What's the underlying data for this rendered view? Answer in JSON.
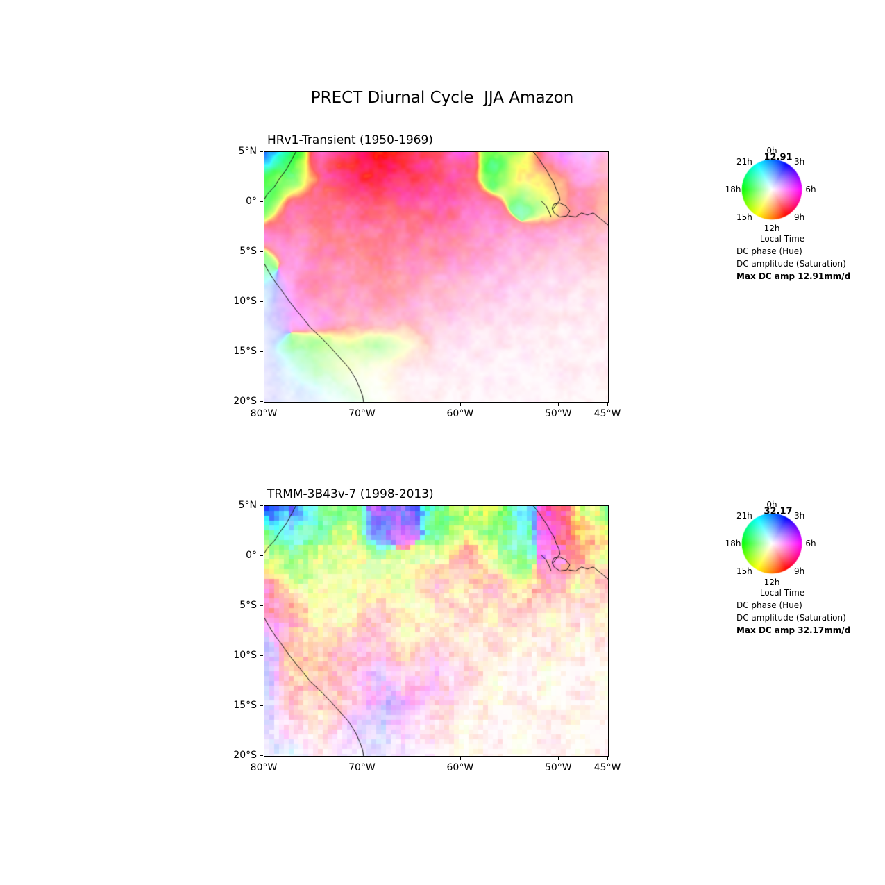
{
  "figure": {
    "title": "PRECT Diurnal Cycle  JJA Amazon"
  },
  "panels": [
    {
      "title": "HRv1-Transient (1950-1969)",
      "max_amp": "12.91",
      "legend": {
        "hours": [
          "0h",
          "3h",
          "6h",
          "9h",
          "12h",
          "15h",
          "18h",
          "21h"
        ],
        "local_time": "Local Time",
        "phase": "DC phase (Hue)",
        "amplitude": "DC amplitude (Saturation)",
        "max": "Max DC amp 12.91mm/d"
      }
    },
    {
      "title": "TRMM-3B43v-7 (1998-2013)",
      "max_amp": "32.17",
      "legend": {
        "hours": [
          "0h",
          "3h",
          "6h",
          "9h",
          "12h",
          "15h",
          "18h",
          "21h"
        ],
        "local_time": "Local Time",
        "phase": "DC phase (Hue)",
        "amplitude": "DC amplitude (Saturation)",
        "max": "Max DC amp 32.17mm/d"
      }
    }
  ],
  "chart_data": [
    {
      "type": "heatmap",
      "title": "HRv1-Transient (1950-1969)",
      "xlabel": "",
      "ylabel": "",
      "x_ticks": [
        {
          "label": "80°W",
          "lon": -80
        },
        {
          "label": "70°W",
          "lon": -70
        },
        {
          "label": "60°W",
          "lon": -60
        },
        {
          "label": "50°W",
          "lon": -50
        },
        {
          "label": "45°W",
          "lon": -45
        }
      ],
      "y_ticks": [
        {
          "label": "5°N",
          "lat": 5
        },
        {
          "label": "0°",
          "lat": 0
        },
        {
          "label": "5°S",
          "lat": -5
        },
        {
          "label": "10°S",
          "lat": -10
        },
        {
          "label": "15°S",
          "lat": -15
        },
        {
          "label": "20°S",
          "lat": -20
        }
      ],
      "extent": {
        "lon_min": -80,
        "lon_max": -45,
        "lat_min": -20,
        "lat_max": 5
      },
      "encoding": {
        "hue": "DC phase (local time)",
        "saturation": "DC amplitude",
        "hour_to_hue_deg": "(210 + 15*hour) mod 360"
      },
      "max_dc_amp_mm_per_day": 12.91,
      "field": {
        "hue_deg": [
          [
            225,
            130,
            335,
            350,
            355,
            350,
            340,
            320,
            120,
            70,
            310,
            280,
            330
          ],
          [
            120,
            110,
            345,
            350,
            352,
            348,
            340,
            335,
            130,
            60,
            30,
            320,
            340
          ],
          [
            115,
            340,
            345,
            348,
            350,
            345,
            340,
            335,
            330,
            140,
            60,
            340,
            20
          ],
          [
            320,
            340,
            345,
            347,
            350,
            345,
            340,
            335,
            330,
            325,
            330,
            335,
            340
          ],
          [
            120,
            315,
            340,
            345,
            345,
            342,
            338,
            332,
            328,
            325,
            330,
            335,
            340
          ],
          [
            200,
            310,
            335,
            340,
            340,
            338,
            333,
            330,
            325,
            325,
            330,
            335,
            340
          ],
          [
            230,
            300,
            315,
            335,
            338,
            335,
            330,
            328,
            325,
            325,
            330,
            335,
            340
          ],
          [
            230,
            110,
            100,
            75,
            110,
            70,
            330,
            328,
            325,
            325,
            330,
            335,
            340
          ],
          [
            250,
            190,
            120,
            80,
            65,
            340,
            335,
            330,
            325,
            325,
            330,
            335,
            340
          ],
          [
            240,
            230,
            200,
            140,
            80,
            350,
            340,
            335,
            330,
            330,
            335,
            340,
            345
          ]
        ],
        "amp_norm": [
          [
            0.9,
            0.8,
            0.6,
            0.85,
            0.9,
            0.8,
            0.7,
            0.6,
            0.7,
            0.6,
            0.5,
            0.3,
            0.25
          ],
          [
            0.7,
            0.5,
            0.6,
            0.8,
            0.85,
            0.75,
            0.7,
            0.65,
            0.6,
            0.5,
            0.5,
            0.4,
            0.3
          ],
          [
            0.6,
            0.5,
            0.55,
            0.6,
            0.6,
            0.6,
            0.6,
            0.55,
            0.5,
            0.4,
            0.45,
            0.4,
            0.35
          ],
          [
            0.5,
            0.45,
            0.5,
            0.5,
            0.5,
            0.5,
            0.5,
            0.45,
            0.4,
            0.35,
            0.3,
            0.3,
            0.25
          ],
          [
            0.4,
            0.4,
            0.45,
            0.45,
            0.45,
            0.42,
            0.4,
            0.35,
            0.3,
            0.25,
            0.2,
            0.18,
            0.15
          ],
          [
            0.2,
            0.4,
            0.4,
            0.4,
            0.38,
            0.35,
            0.3,
            0.25,
            0.2,
            0.15,
            0.12,
            0.1,
            0.1
          ],
          [
            0.15,
            0.35,
            0.35,
            0.3,
            0.3,
            0.28,
            0.22,
            0.18,
            0.12,
            0.1,
            0.08,
            0.07,
            0.06
          ],
          [
            0.1,
            0.3,
            0.35,
            0.3,
            0.25,
            0.2,
            0.15,
            0.1,
            0.08,
            0.06,
            0.05,
            0.05,
            0.05
          ],
          [
            0.1,
            0.15,
            0.2,
            0.15,
            0.1,
            0.08,
            0.06,
            0.05,
            0.05,
            0.04,
            0.04,
            0.04,
            0.04
          ],
          [
            0.12,
            0.1,
            0.08,
            0.06,
            0.05,
            0.04,
            0.04,
            0.03,
            0.03,
            0.03,
            0.03,
            0.03,
            0.03
          ]
        ]
      },
      "noise": {
        "scale": 18,
        "hue_jitter_deg": 14,
        "amp_jitter": 0.05,
        "block": 1,
        "seed": 7
      }
    },
    {
      "type": "heatmap",
      "title": "TRMM-3B43v-7 (1998-2013)",
      "xlabel": "",
      "ylabel": "",
      "x_ticks": [
        {
          "label": "80°W",
          "lon": -80
        },
        {
          "label": "70°W",
          "lon": -70
        },
        {
          "label": "60°W",
          "lon": -60
        },
        {
          "label": "50°W",
          "lon": -50
        },
        {
          "label": "45°W",
          "lon": -45
        }
      ],
      "y_ticks": [
        {
          "label": "5°N",
          "lat": 5
        },
        {
          "label": "0°",
          "lat": 0
        },
        {
          "label": "5°S",
          "lat": -5
        },
        {
          "label": "10°S",
          "lat": -10
        },
        {
          "label": "15°S",
          "lat": -15
        },
        {
          "label": "20°S",
          "lat": -20
        }
      ],
      "extent": {
        "lon_min": -80,
        "lon_max": -45,
        "lat_min": -20,
        "lat_max": 5
      },
      "encoding": {
        "hue": "DC phase (local time)",
        "saturation": "DC amplitude",
        "hour_to_hue_deg": "(210 + 15*hour) mod 360"
      },
      "max_dc_amp_mm_per_day": 32.17,
      "field": {
        "hue_deg": [
          [
            235,
            225,
            150,
            120,
            270,
            250,
            130,
            110,
            65,
            170,
            330,
            60,
            120
          ],
          [
            130,
            180,
            120,
            80,
            240,
            280,
            140,
            70,
            120,
            160,
            320,
            30,
            55
          ],
          [
            60,
            110,
            70,
            60,
            100,
            75,
            60,
            340,
            65,
            130,
            310,
            10,
            60
          ],
          [
            330,
            65,
            70,
            60,
            55,
            65,
            345,
            60,
            335,
            70,
            340,
            60,
            350
          ],
          [
            320,
            345,
            65,
            60,
            350,
            65,
            60,
            345,
            65,
            340,
            60,
            345,
            65
          ],
          [
            230,
            20,
            25,
            350,
            345,
            60,
            340,
            65,
            345,
            60,
            350,
            65,
            340
          ],
          [
            235,
            20,
            5,
            340,
            280,
            340,
            290,
            335,
            60,
            340,
            60,
            345,
            60
          ],
          [
            240,
            10,
            30,
            340,
            280,
            290,
            330,
            335,
            60,
            340,
            65,
            345,
            60
          ],
          [
            250,
            340,
            25,
            280,
            250,
            290,
            335,
            60,
            340,
            60,
            340,
            60,
            340
          ],
          [
            240,
            200,
            340,
            270,
            240,
            280,
            330,
            60,
            340,
            60,
            340,
            60,
            340
          ]
        ],
        "amp_norm": [
          [
            0.95,
            0.7,
            0.5,
            0.5,
            0.6,
            0.65,
            0.6,
            0.55,
            0.6,
            0.55,
            0.7,
            0.5,
            0.45
          ],
          [
            0.6,
            0.45,
            0.5,
            0.45,
            0.5,
            0.5,
            0.5,
            0.5,
            0.5,
            0.45,
            0.6,
            0.5,
            0.45
          ],
          [
            0.4,
            0.45,
            0.4,
            0.35,
            0.35,
            0.35,
            0.3,
            0.3,
            0.35,
            0.5,
            0.45,
            0.4,
            0.35
          ],
          [
            0.35,
            0.35,
            0.3,
            0.3,
            0.28,
            0.28,
            0.25,
            0.25,
            0.25,
            0.3,
            0.3,
            0.25,
            0.2
          ],
          [
            0.4,
            0.3,
            0.25,
            0.25,
            0.22,
            0.22,
            0.2,
            0.2,
            0.2,
            0.2,
            0.18,
            0.15,
            0.15
          ],
          [
            0.25,
            0.3,
            0.28,
            0.25,
            0.22,
            0.2,
            0.2,
            0.15,
            0.15,
            0.12,
            0.12,
            0.1,
            0.1
          ],
          [
            0.2,
            0.3,
            0.3,
            0.25,
            0.25,
            0.2,
            0.2,
            0.15,
            0.1,
            0.08,
            0.08,
            0.07,
            0.07
          ],
          [
            0.15,
            0.25,
            0.22,
            0.2,
            0.35,
            0.3,
            0.2,
            0.12,
            0.08,
            0.06,
            0.06,
            0.05,
            0.05
          ],
          [
            0.12,
            0.15,
            0.15,
            0.2,
            0.2,
            0.15,
            0.1,
            0.07,
            0.05,
            0.05,
            0.04,
            0.04,
            0.04
          ],
          [
            0.1,
            0.08,
            0.08,
            0.1,
            0.1,
            0.08,
            0.06,
            0.05,
            0.04,
            0.04,
            0.03,
            0.03,
            0.03
          ]
        ]
      },
      "noise": {
        "scale": 10,
        "hue_jitter_deg": 30,
        "amp_jitter": 0.1,
        "block": 7,
        "seed": 13
      }
    }
  ],
  "geo": {
    "coastlines": [
      [
        [
          -76.8,
          5
        ],
        [
          -77.3,
          4.1
        ],
        [
          -77.8,
          3.2
        ],
        [
          -78.5,
          2.3
        ],
        [
          -79,
          1.5
        ],
        [
          -79.7,
          0.8
        ],
        [
          -80,
          0.3
        ]
      ],
      [
        [
          -80,
          -6.2
        ],
        [
          -79.5,
          -7.1
        ],
        [
          -78.9,
          -8
        ],
        [
          -78.2,
          -8.9
        ],
        [
          -77.5,
          -9.9
        ],
        [
          -76.7,
          -10.9
        ],
        [
          -76,
          -11.7
        ],
        [
          -75.3,
          -12.6
        ],
        [
          -74.4,
          -13.4
        ],
        [
          -73.4,
          -14.4
        ],
        [
          -72.4,
          -15.5
        ],
        [
          -71.4,
          -16.6
        ],
        [
          -70.7,
          -17.7
        ],
        [
          -70.3,
          -18.6
        ],
        [
          -70,
          -19.4
        ],
        [
          -69.9,
          -20
        ]
      ],
      [
        [
          -52.6,
          5
        ],
        [
          -52.1,
          4.4
        ],
        [
          -51.7,
          3.8
        ],
        [
          -51.2,
          3.1
        ],
        [
          -50.9,
          2.5
        ],
        [
          -50.5,
          1.9
        ],
        [
          -50.3,
          1.3
        ],
        [
          -50,
          0.7
        ],
        [
          -49.9,
          0.2
        ],
        [
          -50.3,
          -0.3
        ],
        [
          -50.7,
          -0.8
        ]
      ],
      [
        [
          -50.5,
          -0.2
        ],
        [
          -49.9,
          -0.1
        ],
        [
          -49.3,
          -0.4
        ],
        [
          -48.9,
          -0.9
        ],
        [
          -49.2,
          -1.4
        ],
        [
          -49.9,
          -1.5
        ],
        [
          -50.5,
          -1.1
        ],
        [
          -50.7,
          -0.6
        ],
        [
          -50.5,
          -0.2
        ]
      ],
      [
        [
          -49,
          -1.4
        ],
        [
          -48.3,
          -1.5
        ],
        [
          -47.7,
          -1.1
        ],
        [
          -47.1,
          -1.3
        ],
        [
          -46.5,
          -1.1
        ],
        [
          -46,
          -1.5
        ],
        [
          -45.5,
          -1.9
        ],
        [
          -45,
          -2.3
        ]
      ],
      [
        [
          -51.8,
          0.1
        ],
        [
          -51.3,
          -0.4
        ],
        [
          -51,
          -1
        ],
        [
          -50.8,
          -1.5
        ]
      ]
    ]
  }
}
